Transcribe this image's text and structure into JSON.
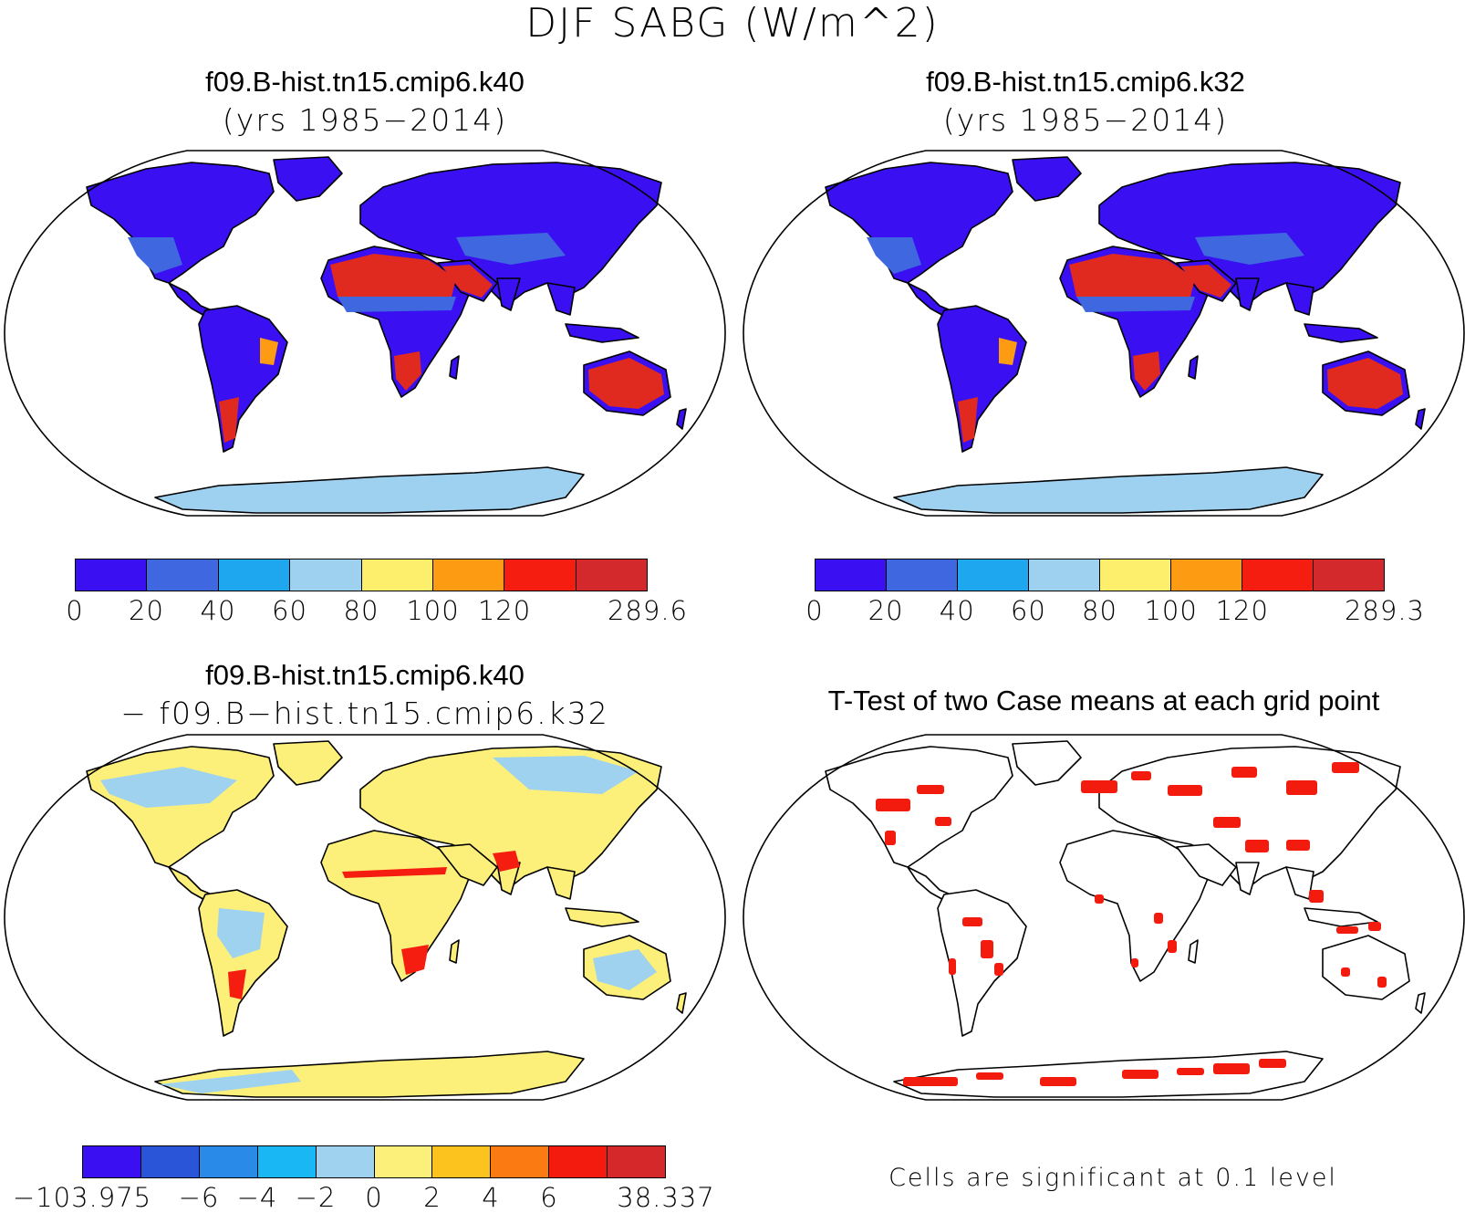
{
  "title": "DJF SABG (W/m^2)",
  "panels": {
    "case1": {
      "title": "f09.B-hist.tn15.cmip6.k40",
      "subtitle": "(yrs 1985−2014)"
    },
    "case2": {
      "title": "f09.B-hist.tn15.cmip6.k32",
      "subtitle": "(yrs 1985−2014)"
    },
    "diff": {
      "title": "f09.B-hist.tn15.cmip6.k40",
      "subtitle": "− f09.B−hist.tn15.cmip6.k32"
    },
    "ttest": {
      "title": "T-Test of two Case means at each grid point",
      "note": "Cells are significant at 0.1 level"
    }
  },
  "colorbars": {
    "case1": {
      "colors": [
        "#3a10f2",
        "#3f67e0",
        "#1ea6ee",
        "#9dd1ef",
        "#fdee6c",
        "#fd9c12",
        "#f51d10",
        "#d3292c"
      ],
      "ticks": [
        "0",
        "20",
        "40",
        "60",
        "80",
        "100",
        "120",
        "289.6"
      ],
      "tick_slots": [
        0,
        1,
        2,
        3,
        4,
        5,
        6,
        8
      ]
    },
    "case2": {
      "colors": [
        "#3a10f2",
        "#3f67e0",
        "#1ea6ee",
        "#9dd1ef",
        "#fdee6c",
        "#fd9c12",
        "#f51d10",
        "#d3292c"
      ],
      "ticks": [
        "0",
        "20",
        "40",
        "60",
        "80",
        "100",
        "120",
        "289.3"
      ],
      "tick_slots": [
        0,
        1,
        2,
        3,
        4,
        5,
        6,
        8
      ]
    },
    "diff": {
      "colors": [
        "#3a10f2",
        "#2b55d8",
        "#2a8ae8",
        "#19b7f4",
        "#9ed2ef",
        "#fdf07a",
        "#fcc21e",
        "#fb7a12",
        "#f21b0e",
        "#d4282b"
      ],
      "ticks": [
        "−103.975",
        "−6",
        "−4",
        "−2",
        "0",
        "2",
        "4",
        "6",
        "38.337"
      ],
      "tick_slots": [
        0,
        2,
        3,
        4,
        5,
        6,
        7,
        8,
        10
      ]
    }
  },
  "map_colors": {
    "ocean": "#ffffff",
    "coast": "#000000",
    "case_land": "#3a10f2",
    "case_mid": "#3f67e0",
    "case_hot": "#e12a1f",
    "case_warm": "#fd9c12",
    "case_ice": "#9dd1ef",
    "diff_land": "#fdf07a",
    "diff_cool": "#9ed2ef",
    "diff_warm": "#f51d10",
    "ttest_land": "#ffffff",
    "ttest_sig": "#f21b0e"
  }
}
